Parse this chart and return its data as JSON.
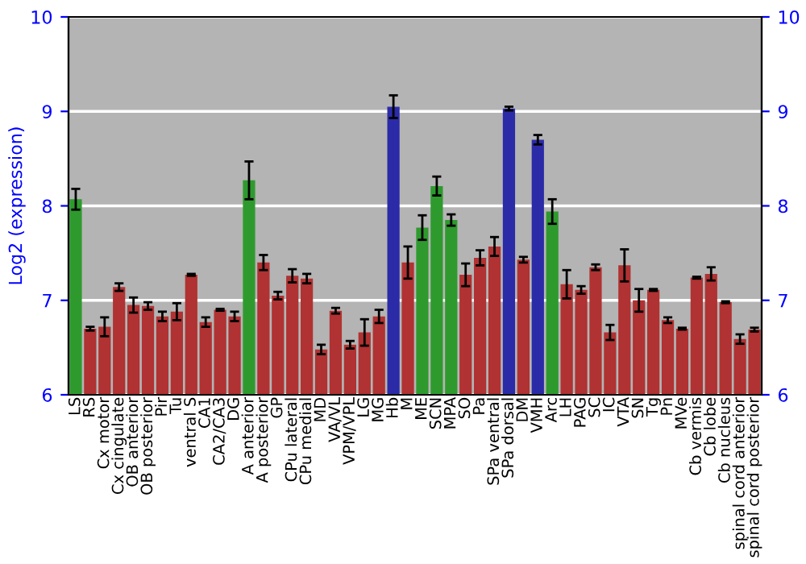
{
  "chart_data": {
    "type": "bar",
    "ylabel": "Log2 (expression)",
    "categories": [
      "LS",
      "RS",
      "Cx motor",
      "Cx cingulate",
      "OB anterior",
      "OB posterior",
      "Pir",
      "Tu",
      "ventral S",
      "CA1",
      "CA2/CA3",
      "DG",
      "A anterior",
      "A posterior",
      "GP",
      "CPu lateral",
      "CPu medial",
      "MD",
      "VA/VL",
      "VPM/VPL",
      "LG",
      "MG",
      "Hb",
      "M",
      "ME",
      "SCN",
      "MPA",
      "SO",
      "Pa",
      "SPa ventral",
      "SPa dorsal",
      "DM",
      "VMH",
      "Arc",
      "LH",
      "PAG",
      "SC",
      "IC",
      "VTA",
      "SN",
      "Tg",
      "Pn",
      "MVe",
      "Cb vermis",
      "Cb lobe",
      "Cb nucleus",
      "spinal cord anterior",
      "spinal cord posterior"
    ],
    "values": [
      8.07,
      6.7,
      6.72,
      7.14,
      6.95,
      6.94,
      6.83,
      6.88,
      7.27,
      6.77,
      6.9,
      6.83,
      8.27,
      7.4,
      7.05,
      7.26,
      7.23,
      6.48,
      6.89,
      6.53,
      6.66,
      6.83,
      9.05,
      7.4,
      7.77,
      8.21,
      7.85,
      7.27,
      7.45,
      7.57,
      9.03,
      7.43,
      8.7,
      7.94,
      7.17,
      7.11,
      7.35,
      6.66,
      7.37,
      7.0,
      7.11,
      6.79,
      6.7,
      7.24,
      7.28,
      6.98,
      6.59,
      6.69
    ],
    "errors": [
      0.11,
      0.02,
      0.1,
      0.04,
      0.08,
      0.04,
      0.05,
      0.09,
      0.01,
      0.05,
      0.01,
      0.05,
      0.2,
      0.08,
      0.04,
      0.07,
      0.05,
      0.05,
      0.03,
      0.04,
      0.14,
      0.07,
      0.12,
      0.17,
      0.13,
      0.1,
      0.06,
      0.12,
      0.08,
      0.1,
      0.02,
      0.03,
      0.05,
      0.13,
      0.15,
      0.04,
      0.03,
      0.08,
      0.17,
      0.12,
      0.01,
      0.03,
      0.01,
      0.01,
      0.07,
      0.01,
      0.05,
      0.02
    ],
    "colors": [
      "#2e9a2e",
      "#b03232",
      "#b03232",
      "#b03232",
      "#b03232",
      "#b03232",
      "#b03232",
      "#b03232",
      "#b03232",
      "#b03232",
      "#b03232",
      "#b03232",
      "#2e9a2e",
      "#b03232",
      "#b03232",
      "#b03232",
      "#b03232",
      "#b03232",
      "#b03232",
      "#b03232",
      "#b03232",
      "#b03232",
      "#2b2ba8",
      "#b03232",
      "#2e9a2e",
      "#2e9a2e",
      "#2e9a2e",
      "#b03232",
      "#b03232",
      "#b03232",
      "#2b2ba8",
      "#b03232",
      "#2b2ba8",
      "#2e9a2e",
      "#b03232",
      "#b03232",
      "#b03232",
      "#b03232",
      "#b03232",
      "#b03232",
      "#b03232",
      "#b03232",
      "#b03232",
      "#b03232",
      "#b03232",
      "#b03232",
      "#b03232",
      "#b03232"
    ],
    "ylim": [
      6,
      10
    ],
    "yticks": [
      6,
      7,
      8,
      9,
      10
    ],
    "y2lim": [
      6,
      10
    ],
    "y2ticks": [
      6,
      7,
      8,
      9,
      10
    ],
    "grid": "y",
    "legend": false
  }
}
